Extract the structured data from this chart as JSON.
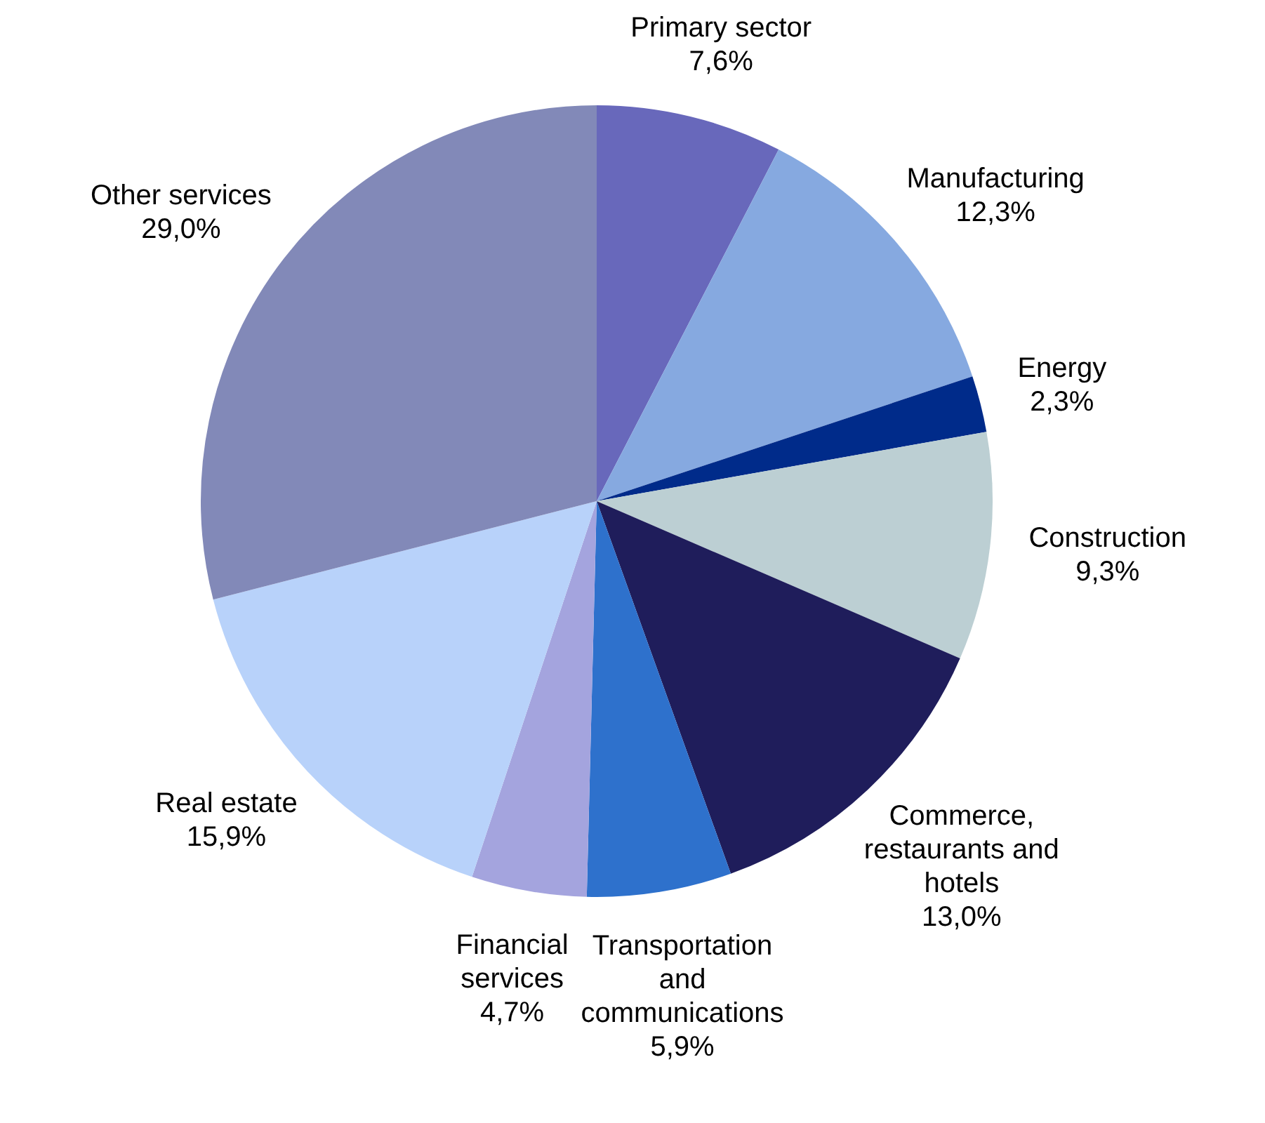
{
  "chart_data": {
    "type": "pie",
    "categories": [
      "Primary sector",
      "Manufacturing",
      "Energy",
      "Construction",
      "Commerce, restaurants and hotels",
      "Transportation and communications",
      "Financial services",
      "Real estate",
      "Other services"
    ],
    "values": [
      7.6,
      12.3,
      2.3,
      9.3,
      13.0,
      5.9,
      4.7,
      15.9,
      29.0
    ],
    "value_labels": [
      "7,6%",
      "12,3%",
      "2,3%",
      "9,3%",
      "13,0%",
      "5,9%",
      "4,7%",
      "15,9%",
      "29,0%"
    ],
    "colors": [
      "#6868bb",
      "#86a9e0",
      "#002b8a",
      "#bccfd3",
      "#1f1d5b",
      "#2e71cc",
      "#a4a4de",
      "#b8d2fa",
      "#8289b8"
    ],
    "legend": false
  }
}
